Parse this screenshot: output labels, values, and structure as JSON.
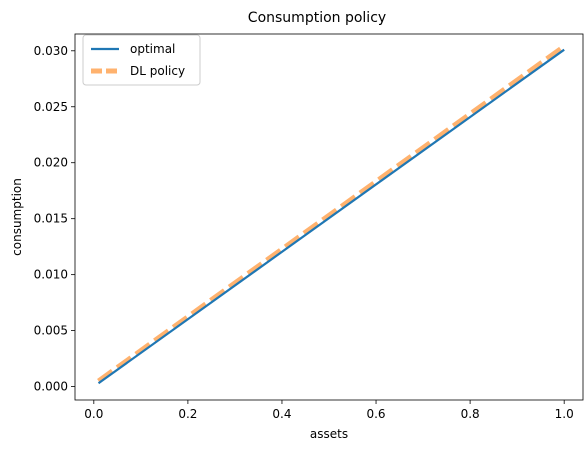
{
  "chart_data": {
    "type": "line",
    "title": "Consumption policy",
    "xlabel": "assets",
    "ylabel": "consumption",
    "xlim": [
      -0.04,
      1.04
    ],
    "ylim": [
      -0.0012,
      0.0315
    ],
    "xticks": [
      0.0,
      0.2,
      0.4,
      0.6,
      0.8,
      1.0
    ],
    "xtick_labels": [
      "0.0",
      "0.2",
      "0.4",
      "0.6",
      "0.8",
      "1.0"
    ],
    "yticks": [
      0.0,
      0.005,
      0.01,
      0.015,
      0.02,
      0.025,
      0.03
    ],
    "ytick_labels": [
      "0.000",
      "0.005",
      "0.010",
      "0.015",
      "0.020",
      "0.025",
      "0.030"
    ],
    "grid": false,
    "legend_position": "upper-left",
    "series": [
      {
        "name": "optimal",
        "color": "#1f77b4",
        "style": "solid",
        "x": [
          0.01,
          1.0
        ],
        "y": [
          0.0003,
          0.0301
        ]
      },
      {
        "name": "DL policy",
        "color": "#ff7f0e",
        "style": "dashed",
        "alpha": 0.6,
        "x": [
          0.01,
          1.0
        ],
        "y": [
          0.0005,
          0.0304
        ]
      }
    ]
  }
}
